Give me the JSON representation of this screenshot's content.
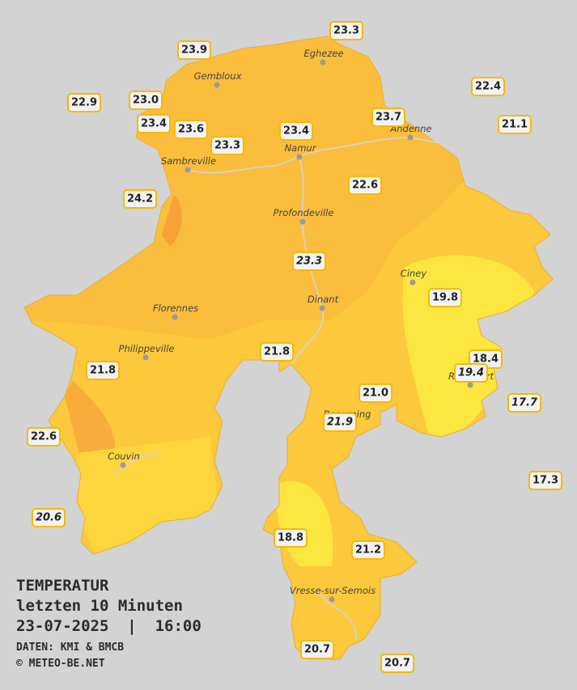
{
  "legend": {
    "title": "TEMPERATUR",
    "period": "letzten 10 Minuten",
    "datetime": "23-07-2025  |  16:00",
    "source": "DATEN: KMI & BMCB",
    "copyright": "© METEO-BE.NET"
  },
  "places": [
    "Eghezee",
    "Gembloux",
    "Andenne",
    "Namur",
    "Sambreville",
    "Profondeville",
    "Ciney",
    "Dinant",
    "Florennes",
    "Philippeville",
    "Rochefort",
    "Beauraing",
    "Couvin",
    "Vresse-sur-Semois"
  ],
  "stations": [
    {
      "value": "23.3"
    },
    {
      "value": "23.9"
    },
    {
      "value": "22.9"
    },
    {
      "value": "23.0"
    },
    {
      "value": "22.4"
    },
    {
      "value": "23.4"
    },
    {
      "value": "23.6"
    },
    {
      "value": "23.7"
    },
    {
      "value": "23.4"
    },
    {
      "value": "21.1"
    },
    {
      "value": "23.3"
    },
    {
      "value": "24.2"
    },
    {
      "value": "22.6"
    },
    {
      "value": "23.3",
      "italic": true
    },
    {
      "value": "19.8"
    },
    {
      "value": "21.8"
    },
    {
      "value": "18.4"
    },
    {
      "value": "21.8"
    },
    {
      "value": "19.4",
      "italic": true
    },
    {
      "value": "21.0"
    },
    {
      "value": "17.7",
      "italic": true
    },
    {
      "value": "21.9",
      "italic": true
    },
    {
      "value": "22.6"
    },
    {
      "value": "17.3"
    },
    {
      "value": "20.6",
      "italic": true
    },
    {
      "value": "18.8"
    },
    {
      "value": "21.2"
    },
    {
      "value": "20.7"
    },
    {
      "value": "20.7"
    }
  ]
}
